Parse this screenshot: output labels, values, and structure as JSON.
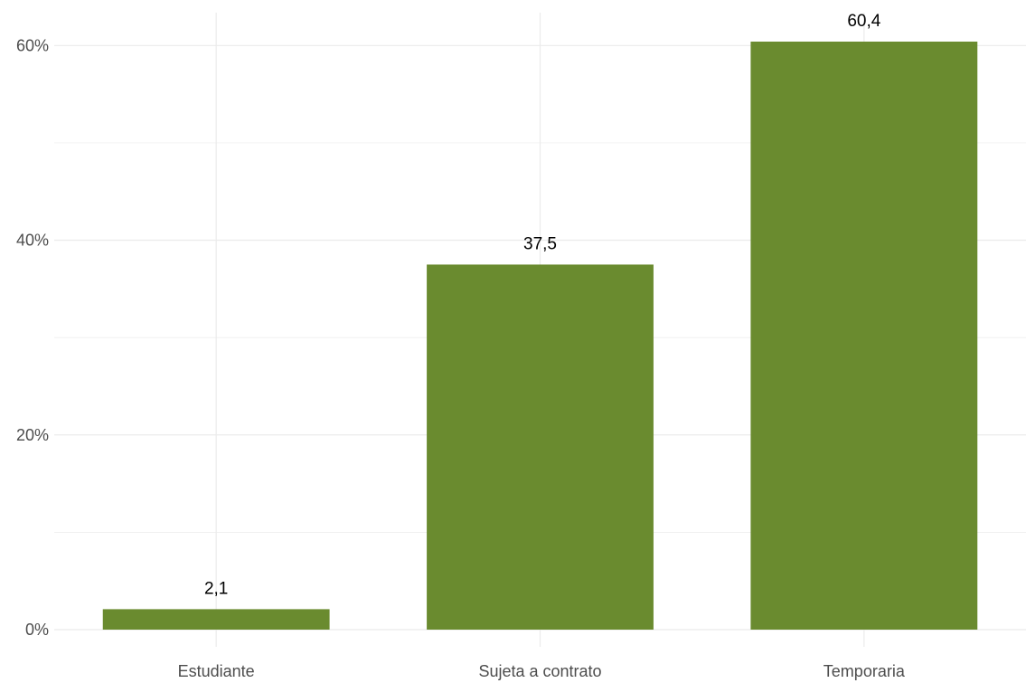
{
  "chart_data": {
    "type": "bar",
    "categories": [
      "Estudiante",
      "Sujeta a contrato",
      "Temporaria"
    ],
    "values": [
      2.1,
      37.5,
      60.4
    ],
    "data_labels": [
      "2,1",
      "37,5",
      "60,4"
    ],
    "title": "",
    "xlabel": "",
    "ylabel": "",
    "ylim": [
      0,
      60.4
    ],
    "y_ticks": [
      0,
      20,
      40,
      60
    ],
    "y_tick_labels": [
      "0%",
      "20%",
      "40%",
      "60%"
    ],
    "grid": true,
    "legend": "none",
    "bar_color": "#6a8b2f",
    "grid_color": "#ebebeb"
  }
}
